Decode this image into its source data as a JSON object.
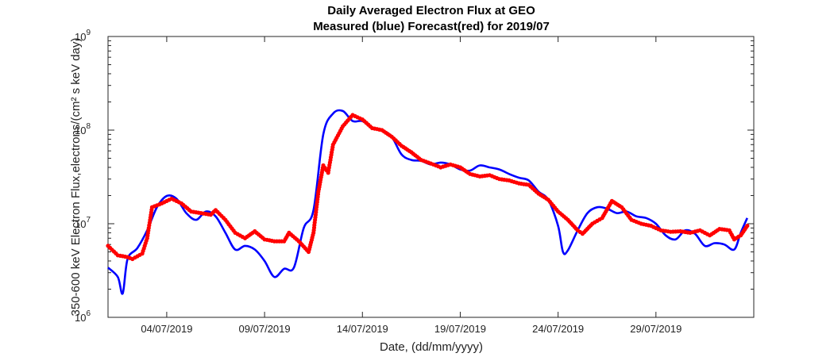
{
  "chart_data": {
    "type": "line",
    "title": "Daily Averaged Electron Flux at GEO",
    "subtitle": "Measured (blue) Forecast(red) for 2019/07",
    "xlabel": "Date, (dd/mm/yyyy)",
    "ylabel": "350-600 keV Electron Flux,electrons/(cm² s keV day)",
    "yscale": "log",
    "ylim": [
      1000000,
      1000000000
    ],
    "xlim": [
      "2019-07-01",
      "2019-08-03"
    ],
    "grid": false,
    "x_ticks": [
      "04/07/2019",
      "09/07/2019",
      "14/07/2019",
      "19/07/2019",
      "24/07/2019",
      "29/07/2019"
    ],
    "y_ticks": [
      {
        "base": "10",
        "exp": "6",
        "value": 1000000
      },
      {
        "base": "10",
        "exp": "7",
        "value": 10000000
      },
      {
        "base": "10",
        "exp": "8",
        "value": 100000000
      },
      {
        "base": "10",
        "exp": "9",
        "value": 1000000000
      }
    ],
    "series": [
      {
        "name": "Measured",
        "color": "#0000ff",
        "style": "line",
        "points": [
          [
            "2019-07-01 00:00",
            3400000
          ],
          [
            "2019-07-01 12:00",
            2700000
          ],
          [
            "2019-07-01 18:00",
            1800000
          ],
          [
            "2019-07-02 00:00",
            4200000
          ],
          [
            "2019-07-02 12:00",
            5500000
          ],
          [
            "2019-07-03 00:00",
            8500000
          ],
          [
            "2019-07-03 12:00",
            15000000
          ],
          [
            "2019-07-04 00:00",
            19800000
          ],
          [
            "2019-07-04 12:00",
            18500000
          ],
          [
            "2019-07-05 00:00",
            13000000
          ],
          [
            "2019-07-05 12:00",
            11000000
          ],
          [
            "2019-07-06 00:00",
            13500000
          ],
          [
            "2019-07-06 12:00",
            12000000
          ],
          [
            "2019-07-07 00:00",
            8000000
          ],
          [
            "2019-07-07 12:00",
            5300000
          ],
          [
            "2019-07-08 00:00",
            5800000
          ],
          [
            "2019-07-08 12:00",
            5300000
          ],
          [
            "2019-07-09 00:00",
            4000000
          ],
          [
            "2019-07-09 12:00",
            2700000
          ],
          [
            "2019-07-10 00:00",
            3300000
          ],
          [
            "2019-07-10 12:00",
            3400000
          ],
          [
            "2019-07-11 00:00",
            9000000
          ],
          [
            "2019-07-11 12:00",
            14000000
          ],
          [
            "2019-07-12 00:00",
            90000000
          ],
          [
            "2019-07-12 12:00",
            150000000
          ],
          [
            "2019-07-13 00:00",
            160000000
          ],
          [
            "2019-07-13 12:00",
            125000000
          ],
          [
            "2019-07-14 00:00",
            125000000
          ],
          [
            "2019-07-14 12:00",
            105000000
          ],
          [
            "2019-07-15 00:00",
            100000000
          ],
          [
            "2019-07-15 12:00",
            85000000
          ],
          [
            "2019-07-16 00:00",
            55000000
          ],
          [
            "2019-07-16 12:00",
            48000000
          ],
          [
            "2019-07-17 00:00",
            47000000
          ],
          [
            "2019-07-17 12:00",
            43000000
          ],
          [
            "2019-07-18 00:00",
            45000000
          ],
          [
            "2019-07-18 12:00",
            43000000
          ],
          [
            "2019-07-19 00:00",
            38000000
          ],
          [
            "2019-07-19 12:00",
            37000000
          ],
          [
            "2019-07-20 00:00",
            42000000
          ],
          [
            "2019-07-20 12:00",
            40000000
          ],
          [
            "2019-07-21 00:00",
            38000000
          ],
          [
            "2019-07-21 12:00",
            34000000
          ],
          [
            "2019-07-22 00:00",
            31000000
          ],
          [
            "2019-07-22 12:00",
            29000000
          ],
          [
            "2019-07-23 00:00",
            22000000
          ],
          [
            "2019-07-23 12:00",
            18000000
          ],
          [
            "2019-07-24 00:00",
            9500000
          ],
          [
            "2019-07-24 06:00",
            5000000
          ],
          [
            "2019-07-24 12:00",
            5200000
          ],
          [
            "2019-07-25 00:00",
            8500000
          ],
          [
            "2019-07-25 12:00",
            13000000
          ],
          [
            "2019-07-26 00:00",
            15000000
          ],
          [
            "2019-07-26 12:00",
            14500000
          ],
          [
            "2019-07-27 00:00",
            13000000
          ],
          [
            "2019-07-27 12:00",
            13500000
          ],
          [
            "2019-07-28 00:00",
            12000000
          ],
          [
            "2019-07-28 12:00",
            11500000
          ],
          [
            "2019-07-29 00:00",
            10000000
          ],
          [
            "2019-07-29 12:00",
            7500000
          ],
          [
            "2019-07-30 00:00",
            6800000
          ],
          [
            "2019-07-30 12:00",
            8500000
          ],
          [
            "2019-07-31 00:00",
            7800000
          ],
          [
            "2019-07-31 12:00",
            5800000
          ],
          [
            "2019-08-01 00:00",
            6200000
          ],
          [
            "2019-08-01 12:00",
            6000000
          ],
          [
            "2019-08-02 00:00",
            5300000
          ],
          [
            "2019-08-02 08:00",
            8000000
          ],
          [
            "2019-08-02 16:00",
            11500000
          ]
        ]
      },
      {
        "name": "Forecast",
        "color": "#ff0000",
        "style": "dots",
        "points": [
          [
            "2019-07-01 00:00",
            5800000
          ],
          [
            "2019-07-01 12:00",
            4600000
          ],
          [
            "2019-07-02 00:00",
            4400000
          ],
          [
            "2019-07-02 06:00",
            4200000
          ],
          [
            "2019-07-02 18:00",
            4800000
          ],
          [
            "2019-07-03 00:00",
            7000000
          ],
          [
            "2019-07-03 06:00",
            15000000
          ],
          [
            "2019-07-03 18:00",
            16500000
          ],
          [
            "2019-07-04 06:00",
            18500000
          ],
          [
            "2019-07-04 18:00",
            16500000
          ],
          [
            "2019-07-05 06:00",
            13500000
          ],
          [
            "2019-07-05 18:00",
            13000000
          ],
          [
            "2019-07-06 06:00",
            12500000
          ],
          [
            "2019-07-06 12:00",
            14000000
          ],
          [
            "2019-07-07 00:00",
            11000000
          ],
          [
            "2019-07-07 12:00",
            8000000
          ],
          [
            "2019-07-08 00:00",
            7000000
          ],
          [
            "2019-07-08 12:00",
            8300000
          ],
          [
            "2019-07-09 00:00",
            6800000
          ],
          [
            "2019-07-09 12:00",
            6500000
          ],
          [
            "2019-07-10 00:00",
            6500000
          ],
          [
            "2019-07-10 06:00",
            8000000
          ],
          [
            "2019-07-10 18:00",
            6500000
          ],
          [
            "2019-07-11 06:00",
            5000000
          ],
          [
            "2019-07-11 12:00",
            8000000
          ],
          [
            "2019-07-11 18:00",
            22000000
          ],
          [
            "2019-07-12 00:00",
            42000000
          ],
          [
            "2019-07-12 06:00",
            35000000
          ],
          [
            "2019-07-12 12:00",
            70000000
          ],
          [
            "2019-07-13 00:00",
            110000000
          ],
          [
            "2019-07-13 12:00",
            145000000
          ],
          [
            "2019-07-14 00:00",
            130000000
          ],
          [
            "2019-07-14 12:00",
            105000000
          ],
          [
            "2019-07-15 00:00",
            100000000
          ],
          [
            "2019-07-15 12:00",
            85000000
          ],
          [
            "2019-07-16 00:00",
            68000000
          ],
          [
            "2019-07-16 12:00",
            58000000
          ],
          [
            "2019-07-17 00:00",
            48000000
          ],
          [
            "2019-07-17 12:00",
            44000000
          ],
          [
            "2019-07-18 00:00",
            40000000
          ],
          [
            "2019-07-18 12:00",
            43000000
          ],
          [
            "2019-07-19 00:00",
            40000000
          ],
          [
            "2019-07-19 12:00",
            34000000
          ],
          [
            "2019-07-20 00:00",
            32000000
          ],
          [
            "2019-07-20 12:00",
            33000000
          ],
          [
            "2019-07-21 00:00",
            30000000
          ],
          [
            "2019-07-21 12:00",
            29000000
          ],
          [
            "2019-07-22 00:00",
            27000000
          ],
          [
            "2019-07-22 12:00",
            26000000
          ],
          [
            "2019-07-23 00:00",
            21000000
          ],
          [
            "2019-07-23 12:00",
            18000000
          ],
          [
            "2019-07-24 00:00",
            13500000
          ],
          [
            "2019-07-24 12:00",
            11000000
          ],
          [
            "2019-07-25 00:00",
            8500000
          ],
          [
            "2019-07-25 06:00",
            7800000
          ],
          [
            "2019-07-25 18:00",
            10000000
          ],
          [
            "2019-07-26 06:00",
            11500000
          ],
          [
            "2019-07-26 18:00",
            17500000
          ],
          [
            "2019-07-27 06:00",
            15000000
          ],
          [
            "2019-07-27 18:00",
            11000000
          ],
          [
            "2019-07-28 06:00",
            10000000
          ],
          [
            "2019-07-28 18:00",
            9500000
          ],
          [
            "2019-07-29 06:00",
            8500000
          ],
          [
            "2019-07-29 18:00",
            8200000
          ],
          [
            "2019-07-30 06:00",
            8300000
          ],
          [
            "2019-07-30 18:00",
            8000000
          ],
          [
            "2019-07-31 06:00",
            8500000
          ],
          [
            "2019-07-31 18:00",
            7500000
          ],
          [
            "2019-08-01 06:00",
            8800000
          ],
          [
            "2019-08-01 18:00",
            8500000
          ],
          [
            "2019-08-02 00:00",
            6800000
          ],
          [
            "2019-08-02 08:00",
            7500000
          ],
          [
            "2019-08-02 16:00",
            9500000
          ]
        ]
      }
    ]
  }
}
